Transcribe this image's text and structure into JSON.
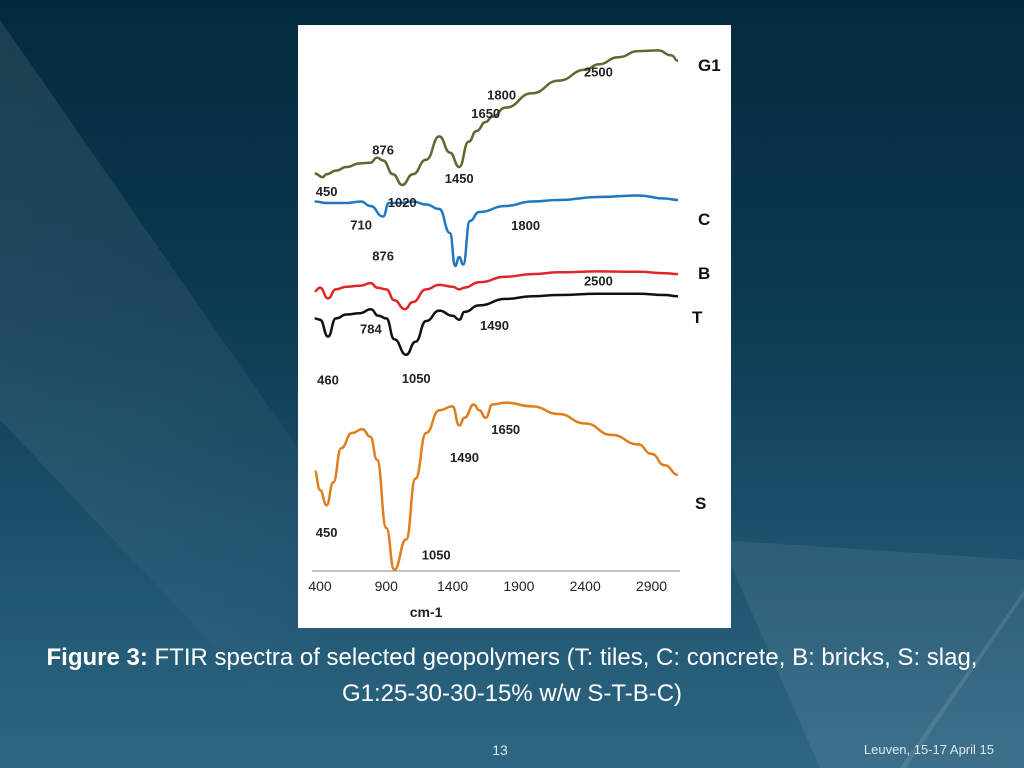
{
  "slide": {
    "caption_lead": "Figure 3:",
    "caption_text": " FTIR spectra of selected geopolymers (T: tiles, C: concrete, B: bricks, S: slag, G1:25-30-30-15% w/w S-T-B-C)",
    "page_number": "13",
    "footer": "Leuven, 15-17 April 15"
  },
  "chart_data": {
    "type": "line",
    "title": "",
    "xlabel": "cm-1",
    "ylabel": "",
    "xlim": [
      400,
      3100
    ],
    "x_ticks": [
      "400",
      "900",
      "1400",
      "1900",
      "2400",
      "2900"
    ],
    "colors": {
      "G1": "#5a6b32",
      "C": "#1f78c1",
      "B": "#e0262a",
      "T": "#111111",
      "S": "#de7e1e"
    },
    "series": [
      {
        "name": "G1",
        "values": [
          [
            360,
            0.32
          ],
          [
            420,
            0.22
          ],
          [
            450,
            0.3
          ],
          [
            520,
            0.4
          ],
          [
            600,
            0.5
          ],
          [
            700,
            0.6
          ],
          [
            780,
            0.62
          ],
          [
            830,
            0.76
          ],
          [
            876,
            0.68
          ],
          [
            950,
            0.3
          ],
          [
            1020,
            0.0
          ],
          [
            1100,
            0.3
          ],
          [
            1200,
            0.7
          ],
          [
            1300,
            1.35
          ],
          [
            1380,
            0.9
          ],
          [
            1450,
            0.5
          ],
          [
            1520,
            1.2
          ],
          [
            1580,
            1.5
          ],
          [
            1650,
            1.75
          ],
          [
            1700,
            1.9
          ],
          [
            1800,
            2.15
          ],
          [
            2000,
            2.55
          ],
          [
            2200,
            2.9
          ],
          [
            2400,
            3.2
          ],
          [
            2500,
            3.35
          ],
          [
            2650,
            3.55
          ],
          [
            2800,
            3.72
          ],
          [
            2950,
            3.74
          ],
          [
            3050,
            3.6
          ],
          [
            3100,
            3.45
          ]
        ],
        "annotations": [
          {
            "text": "450",
            "x": 450,
            "pos": "below"
          },
          {
            "text": "876",
            "x": 876,
            "pos": "below"
          },
          {
            "text": "1020",
            "x": 1020,
            "pos": "below"
          },
          {
            "text": "1450",
            "x": 1450,
            "pos": "below"
          },
          {
            "text": "1650",
            "x": 1650,
            "pos": "below"
          },
          {
            "text": "1800",
            "x": 1800,
            "pos": "right"
          },
          {
            "text": "2500",
            "x": 2500,
            "pos": "below"
          }
        ]
      },
      {
        "name": "C",
        "values": [
          [
            360,
            0.55
          ],
          [
            450,
            0.5
          ],
          [
            600,
            0.5
          ],
          [
            710,
            0.55
          ],
          [
            780,
            0.4
          ],
          [
            876,
            0.05
          ],
          [
            920,
            0.5
          ],
          [
            1000,
            0.5
          ],
          [
            1100,
            0.55
          ],
          [
            1200,
            0.45
          ],
          [
            1300,
            0.3
          ],
          [
            1380,
            -0.5
          ],
          [
            1420,
            -1.6
          ],
          [
            1450,
            -1.3
          ],
          [
            1480,
            -1.55
          ],
          [
            1530,
            -0.1
          ],
          [
            1600,
            0.2
          ],
          [
            1800,
            0.4
          ],
          [
            2000,
            0.55
          ],
          [
            2200,
            0.6
          ],
          [
            2500,
            0.7
          ],
          [
            2800,
            0.75
          ],
          [
            3000,
            0.65
          ],
          [
            3100,
            0.6
          ]
        ],
        "annotations": [
          {
            "text": "710",
            "x": 710,
            "pos": "below"
          },
          {
            "text": "876",
            "x": 876,
            "pos": "below"
          },
          {
            "text": "1800",
            "x": 1800,
            "pos": "below"
          }
        ]
      },
      {
        "name": "B",
        "values": [
          [
            360,
            0.1
          ],
          [
            400,
            0.3
          ],
          [
            460,
            -0.3
          ],
          [
            520,
            0.2
          ],
          [
            600,
            0.35
          ],
          [
            700,
            0.4
          ],
          [
            784,
            0.55
          ],
          [
            830,
            0.3
          ],
          [
            900,
            0.2
          ],
          [
            960,
            -0.4
          ],
          [
            1040,
            -0.9
          ],
          [
            1100,
            -0.5
          ],
          [
            1200,
            0.2
          ],
          [
            1300,
            0.45
          ],
          [
            1400,
            0.35
          ],
          [
            1450,
            0.2
          ],
          [
            1490,
            0.3
          ],
          [
            1600,
            0.6
          ],
          [
            1800,
            0.9
          ],
          [
            2000,
            1.05
          ],
          [
            2200,
            1.15
          ],
          [
            2500,
            1.2
          ],
          [
            2800,
            1.18
          ],
          [
            3000,
            1.1
          ],
          [
            3100,
            1.05
          ]
        ],
        "annotations": [
          {
            "text": "2500",
            "x": 2500,
            "pos": "below"
          }
        ]
      },
      {
        "name": "T",
        "values": [
          [
            360,
            0.1
          ],
          [
            400,
            0.05
          ],
          [
            460,
            -0.6
          ],
          [
            520,
            0.1
          ],
          [
            600,
            0.25
          ],
          [
            700,
            0.3
          ],
          [
            784,
            0.45
          ],
          [
            840,
            0.2
          ],
          [
            900,
            0.1
          ],
          [
            960,
            -0.7
          ],
          [
            1050,
            -1.3
          ],
          [
            1120,
            -0.8
          ],
          [
            1200,
            0.0
          ],
          [
            1300,
            0.4
          ],
          [
            1400,
            0.2
          ],
          [
            1450,
            0.05
          ],
          [
            1490,
            0.35
          ],
          [
            1600,
            0.6
          ],
          [
            1800,
            0.85
          ],
          [
            2000,
            0.95
          ],
          [
            2200,
            1.0
          ],
          [
            2500,
            1.05
          ],
          [
            2800,
            1.05
          ],
          [
            3000,
            1.0
          ],
          [
            3100,
            0.95
          ]
        ],
        "annotations": [
          {
            "text": "460",
            "x": 460,
            "pos": "below"
          },
          {
            "text": "784",
            "x": 784,
            "pos": "below"
          },
          {
            "text": "1050",
            "x": 1050,
            "pos": "below"
          },
          {
            "text": "1490",
            "x": 1490,
            "pos": "below"
          }
        ]
      },
      {
        "name": "S",
        "values": [
          [
            360,
            0.0
          ],
          [
            400,
            -0.5
          ],
          [
            450,
            -0.9
          ],
          [
            500,
            -0.3
          ],
          [
            560,
            0.6
          ],
          [
            640,
            1.0
          ],
          [
            720,
            1.1
          ],
          [
            780,
            0.9
          ],
          [
            830,
            0.3
          ],
          [
            900,
            -1.5
          ],
          [
            960,
            -2.6
          ],
          [
            1050,
            -1.8
          ],
          [
            1120,
            -0.2
          ],
          [
            1200,
            1.0
          ],
          [
            1300,
            1.6
          ],
          [
            1400,
            1.7
          ],
          [
            1450,
            1.2
          ],
          [
            1490,
            1.4
          ],
          [
            1560,
            1.75
          ],
          [
            1600,
            1.6
          ],
          [
            1650,
            1.4
          ],
          [
            1700,
            1.75
          ],
          [
            1800,
            1.8
          ],
          [
            2000,
            1.7
          ],
          [
            2200,
            1.5
          ],
          [
            2400,
            1.25
          ],
          [
            2600,
            0.95
          ],
          [
            2800,
            0.7
          ],
          [
            2900,
            0.45
          ],
          [
            3000,
            0.15
          ],
          [
            3100,
            -0.1
          ]
        ],
        "annotations": [
          {
            "text": "450",
            "x": 450,
            "pos": "below"
          },
          {
            "text": "1050",
            "x": 1050,
            "pos": "below"
          },
          {
            "text": "1490",
            "x": 1490,
            "pos": "below"
          },
          {
            "text": "1650",
            "x": 1650,
            "pos": "below"
          }
        ]
      }
    ]
  }
}
